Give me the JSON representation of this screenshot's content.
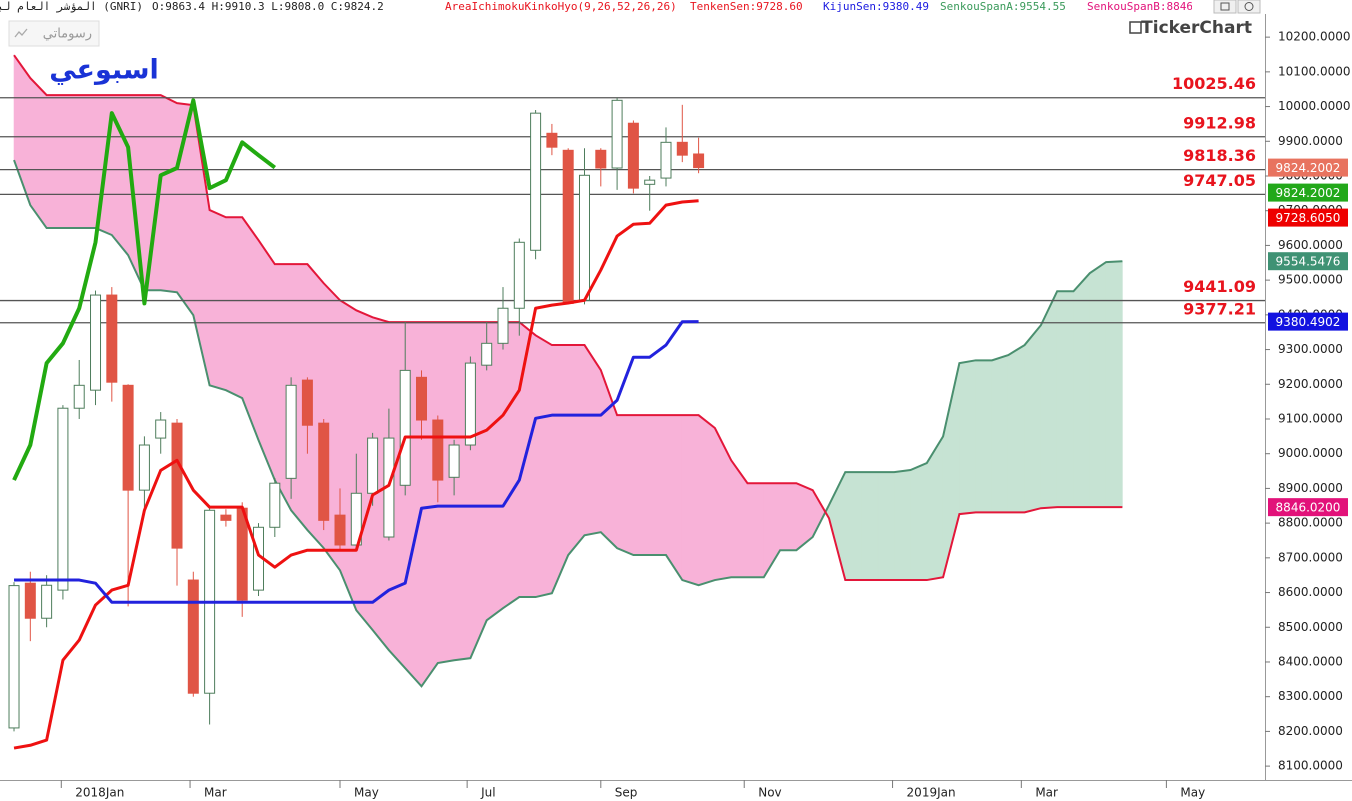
{
  "chart_data": {
    "type": "candlestick",
    "title": "المؤشر العام لبورصة قطر (GNRI)",
    "ohlc_label": "O:9863.4  H:9910.3  L:9808.0  C:9824.2",
    "indicator_labels": [
      {
        "text": "AreaIchimokuKinkoHyo(9,26,52,26,26)",
        "color": "#e8141e"
      },
      {
        "text": "TenkenSen:9728.60",
        "color": "#e8141e"
      },
      {
        "text": "KijunSen:9380.49",
        "color": "#1a1ae0"
      },
      {
        "text": "SenkouSpanA:9554.55",
        "color": "#3a9a5a"
      },
      {
        "text": "SenkouSpanB:8846.0",
        "color": "#e2127a"
      }
    ],
    "annotation": "اسبوعي",
    "watermark": "TickerChart",
    "button": "رسوماتي",
    "xlim": [
      -0.86,
      76.75
    ],
    "ylim": [
      8060,
      10307
    ],
    "xticks": [
      {
        "value": 2.9,
        "label": "2018Jan"
      },
      {
        "value": 10.8,
        "label": "Mar"
      },
      {
        "value": 20,
        "label": "May"
      },
      {
        "value": 27.8,
        "label": "Jul"
      },
      {
        "value": 36,
        "label": "Sep"
      },
      {
        "value": 44.8,
        "label": "Nov"
      },
      {
        "value": 53.9,
        "label": "2019Jan"
      },
      {
        "value": 61.8,
        "label": "Mar"
      },
      {
        "value": 70.7,
        "label": "May"
      }
    ],
    "yticks": [
      {
        "value": 8100,
        "label": "8100.0000"
      },
      {
        "value": 8200,
        "label": "8200.0000"
      },
      {
        "value": 8300,
        "label": "8300.0000"
      },
      {
        "value": 8400,
        "label": "8400.0000"
      },
      {
        "value": 8500,
        "label": "8500.0000"
      },
      {
        "value": 8600,
        "label": "8600.0000"
      },
      {
        "value": 8700,
        "label": "8700.0000"
      },
      {
        "value": 8800,
        "label": "8800.0000"
      },
      {
        "value": 8900,
        "label": "8900.0000"
      },
      {
        "value": 9000,
        "label": "9000.0000"
      },
      {
        "value": 9100,
        "label": "9100.0000"
      },
      {
        "value": 9200,
        "label": "9200.0000"
      },
      {
        "value": 9300,
        "label": "9300.0000"
      },
      {
        "value": 9400,
        "label": "9400.0000"
      },
      {
        "value": 9500,
        "label": "9500.0000"
      },
      {
        "value": 9600,
        "label": "9600.0000"
      },
      {
        "value": 9700,
        "label": "9700.0000"
      },
      {
        "value": 9800,
        "label": "9800.0000"
      },
      {
        "value": 9900,
        "label": "9900.0000"
      },
      {
        "value": 10000,
        "label": "10000.0000"
      },
      {
        "value": 10100,
        "label": "10100.0000"
      },
      {
        "value": 10200,
        "label": "10200.0000"
      }
    ],
    "candles": {
      "up_color": "#4e7d5c",
      "down_color": "#e05545",
      "x": [
        0,
        1,
        2,
        3,
        4,
        5,
        6,
        7,
        8,
        9,
        10,
        11,
        12,
        13,
        14,
        15,
        16,
        17,
        18,
        19,
        20,
        21,
        22,
        23,
        24,
        25,
        26,
        27,
        28,
        29,
        30,
        31,
        32,
        33,
        34,
        35,
        36,
        37,
        38,
        39,
        40,
        41,
        42
      ],
      "open": [
        8210,
        8627,
        8526,
        8607,
        9131,
        9183,
        9457,
        9197,
        8895,
        9045,
        9088,
        8636,
        8310,
        8823,
        8843,
        8607,
        8788,
        8929,
        9212,
        9088,
        8823,
        8737,
        8886,
        8760,
        8909,
        9220,
        9097,
        8932,
        9025,
        9255,
        9318,
        9419,
        9586,
        9923,
        9874,
        9442,
        9874,
        9823,
        9952,
        9776,
        9794,
        9897,
        9863.4
      ],
      "high": [
        8630,
        8660,
        8650,
        9140,
        9270,
        9470,
        9480,
        9200,
        9050,
        9120,
        9100,
        8660,
        8850,
        8840,
        8860,
        8800,
        8930,
        9220,
        9220,
        9100,
        8900,
        9000,
        9060,
        9130,
        9380,
        9240,
        9110,
        9040,
        9280,
        9380,
        9480,
        9620,
        9990,
        9950,
        9880,
        9880,
        9880,
        10025,
        9960,
        9800,
        9940,
        10005,
        9910.3
      ],
      "low": [
        8200,
        8460,
        8500,
        8580,
        9100,
        9140,
        9150,
        8560,
        8830,
        9000,
        8620,
        8300,
        8220,
        8790,
        8530,
        8590,
        8760,
        8870,
        9000,
        8780,
        8720,
        8720,
        8850,
        8750,
        8880,
        9040,
        8860,
        8880,
        9010,
        9240,
        9300,
        9340,
        9560,
        9860,
        9430,
        9430,
        9770,
        9760,
        9750,
        9700,
        9770,
        9840,
        9808
      ],
      "close": [
        8620,
        8526,
        8621,
        9131,
        9197,
        9457,
        9206,
        8895,
        9025,
        9097,
        8728,
        8310,
        8837,
        8808,
        8578,
        8788,
        8915,
        9197,
        9082,
        8808,
        8737,
        8886,
        9045,
        9045,
        9240,
        9097,
        8924,
        9025,
        9261,
        9318,
        9419,
        9609,
        9981,
        9883,
        9433,
        9802,
        9823,
        10018,
        9765,
        9788,
        9897,
        9860,
        9824.2
      ]
    },
    "cloud": {
      "fill_up": "#c6e3d3",
      "fill_down": "#f8b2d8",
      "x": [
        0,
        1,
        2,
        3,
        4,
        5,
        6,
        7,
        8,
        9,
        10,
        11,
        12,
        13,
        14,
        15,
        16,
        17,
        18,
        19,
        20,
        21,
        22,
        23,
        24,
        25,
        26,
        27,
        28,
        29,
        30,
        31,
        32,
        33,
        34,
        35,
        36,
        37,
        38,
        39,
        40,
        41,
        42,
        43,
        44,
        45,
        46,
        47,
        48,
        49,
        50,
        51,
        52,
        53,
        54,
        55,
        56,
        57,
        58,
        59,
        60,
        61,
        62,
        63,
        64,
        65,
        66,
        67,
        68
      ],
      "a": {
        "color": "#4a8f6f",
        "values": [
          9846,
          9716,
          9650,
          9650,
          9650,
          9650,
          9630,
          9572,
          9471,
          9471,
          9465,
          9399,
          9197,
          9183,
          9160,
          9039,
          8924,
          8837,
          8780,
          8728,
          8664,
          8549,
          8492,
          8434,
          8382,
          8330,
          8397,
          8405,
          8411,
          8520,
          8555,
          8587,
          8587,
          8598,
          8708,
          8765,
          8774,
          8728,
          8708,
          8708,
          8708,
          8636,
          8621,
          8636,
          8644,
          8644,
          8644,
          8722,
          8722,
          8760,
          8852,
          8947,
          8947,
          8947,
          8947,
          8953,
          8973,
          9050,
          9261,
          9269,
          9269,
          9284,
          9313,
          9370,
          9468,
          9468,
          9520,
          9552,
          9554.55
        ]
      },
      "b": {
        "color": "#e3173a",
        "values": [
          10148,
          10082,
          10033,
          10033,
          10033,
          10033,
          10033,
          10033,
          10033,
          10033,
          10010,
          10004,
          9702,
          9681,
          9681,
          9615,
          9546,
          9546,
          9546,
          9491,
          9442,
          9413,
          9393,
          9379,
          9379,
          9379,
          9379,
          9379,
          9379,
          9379,
          9379,
          9379,
          9341,
          9313,
          9313,
          9313,
          9241,
          9111,
          9111,
          9111,
          9111,
          9111,
          9111,
          9074,
          8981,
          8915,
          8915,
          8915,
          8915,
          8895,
          8814,
          8636,
          8636,
          8636,
          8636,
          8636,
          8636,
          8644,
          8826,
          8831,
          8831,
          8831,
          8831,
          8843,
          8846,
          8846,
          8846,
          8846,
          8846.02
        ]
      }
    },
    "series": [
      {
        "color": "#ee1111",
        "width": 3,
        "x": [
          0,
          1,
          2,
          3,
          4,
          5,
          6,
          7,
          8,
          9,
          10,
          11,
          12,
          13,
          14,
          15,
          16,
          17,
          18,
          19,
          20,
          21,
          22,
          23,
          24,
          25,
          26,
          27,
          28,
          29,
          30,
          31,
          32,
          33,
          34,
          35,
          36,
          37,
          38,
          39,
          40,
          41,
          42
        ],
        "values": [
          8152,
          8160,
          8175,
          8405,
          8463,
          8564,
          8607,
          8621,
          8837,
          8952,
          8981,
          8895,
          8846,
          8846,
          8846,
          8708,
          8673,
          8708,
          8722,
          8722,
          8722,
          8722,
          8881,
          8909,
          9048,
          9048,
          9048,
          9048,
          9048,
          9068,
          9111,
          9183,
          9419,
          9428,
          9434,
          9442,
          9529,
          9627,
          9661,
          9664,
          9716,
          9725,
          9728.6
        ]
      },
      {
        "color": "#2222dd",
        "width": 3,
        "x": [
          0,
          1,
          2,
          3,
          4,
          5,
          6,
          7,
          8,
          9,
          10,
          11,
          12,
          13,
          14,
          15,
          16,
          17,
          18,
          19,
          20,
          21,
          22,
          23,
          24,
          25,
          26,
          27,
          28,
          29,
          30,
          31,
          32,
          33,
          34,
          35,
          36,
          37,
          38,
          39,
          40,
          41,
          42
        ],
        "values": [
          8636,
          8636,
          8636,
          8636,
          8636,
          8627,
          8572,
          8572,
          8572,
          8572,
          8572,
          8572,
          8572,
          8572,
          8572,
          8572,
          8572,
          8572,
          8572,
          8572,
          8572,
          8572,
          8572,
          8607,
          8627,
          8843,
          8849,
          8849,
          8849,
          8849,
          8849,
          8924,
          9102,
          9111,
          9111,
          9111,
          9111,
          9154,
          9278,
          9278,
          9313,
          9380,
          9380.49
        ]
      },
      {
        "color": "#22aa11",
        "width": 4,
        "x": [
          0,
          1,
          2,
          3,
          4,
          5,
          6,
          7,
          8,
          9,
          10,
          11,
          12,
          13,
          14,
          15,
          16
        ],
        "values": [
          8924,
          9025,
          9261,
          9318,
          9419,
          9609,
          9981,
          9883,
          9433,
          9802,
          9823,
          10018,
          9765,
          9788,
          9897,
          9860,
          9824.2
        ]
      }
    ],
    "levels": {
      "color": "#555555",
      "label_color": "#e8141e",
      "values": [
        10025.46,
        9912.98,
        9818.36,
        9747.05,
        9441.09,
        9377.21
      ]
    },
    "price_tags": [
      {
        "value": 9824.2002,
        "color": "#e8735f"
      },
      {
        "value": 9824.2002,
        "color": "#22a81a"
      },
      {
        "value": 9728.605,
        "label": "9728.6050",
        "color": "#ee0000"
      },
      {
        "value": 9554.5476,
        "color": "#3f9274"
      },
      {
        "value": 9380.4902,
        "color": "#1212e0"
      },
      {
        "value": 8846.02,
        "label": "8846.0200",
        "color": "#e2127a"
      }
    ]
  }
}
